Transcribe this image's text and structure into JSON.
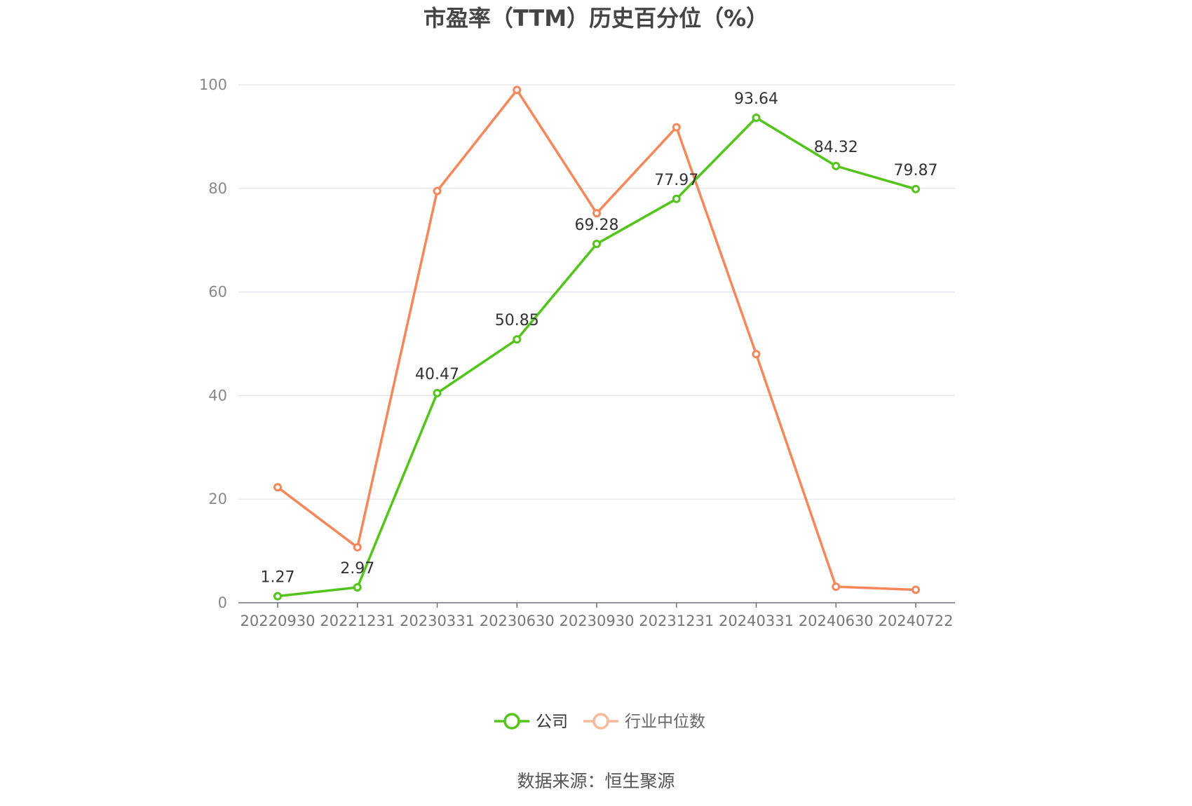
{
  "chart_data": {
    "type": "line",
    "title": "市盈率（TTM）历史百分位（%）",
    "categories": [
      "20220930",
      "20221231",
      "20230331",
      "20230630",
      "20230930",
      "20231231",
      "20240331",
      "20240630",
      "20240722"
    ],
    "ylim": [
      0,
      100
    ],
    "yticks": [
      0,
      20,
      40,
      60,
      80,
      100
    ],
    "grid": true,
    "legend_position": "bottom-center",
    "series": [
      {
        "name": "公司",
        "color": "#52c41a",
        "values": [
          1.27,
          2.97,
          40.47,
          50.85,
          69.28,
          77.97,
          93.64,
          84.32,
          79.87
        ],
        "data_labels": [
          "1.27",
          "2.97",
          "40.47",
          "50.85",
          "69.28",
          "77.97",
          "93.64",
          "84.32",
          "79.87"
        ]
      },
      {
        "name": "行业中位数",
        "color": "#f5875a",
        "values": [
          22.3,
          10.7,
          79.5,
          99.0,
          75.2,
          91.8,
          48.0,
          3.1,
          2.5
        ]
      }
    ]
  },
  "source": "数据来源：恒生聚源"
}
